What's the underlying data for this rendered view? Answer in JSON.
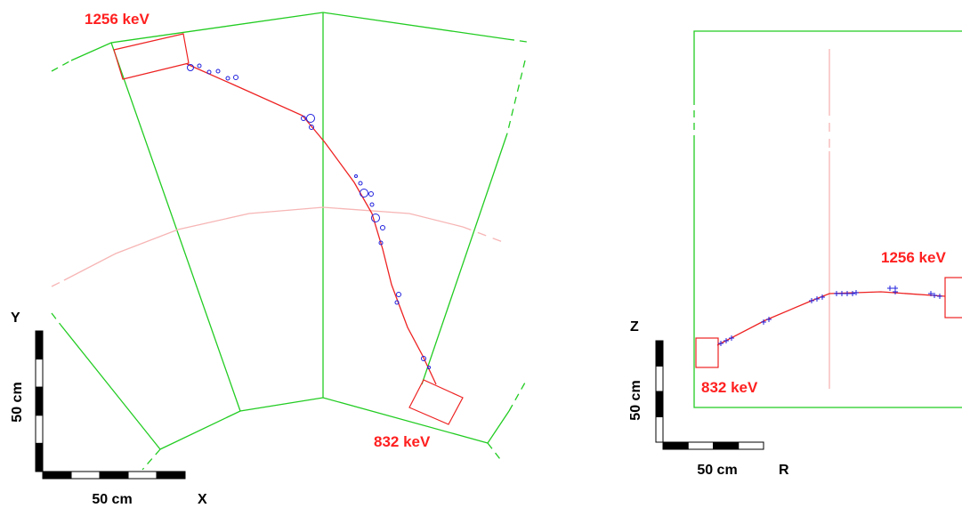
{
  "left_view": {
    "energy_labels": [
      "1256 keV",
      "832 keV"
    ],
    "scale": {
      "vertical_axis": "Y",
      "length_vertical": "50 cm",
      "length_horizontal": "50 cm",
      "horizontal_axis": "X"
    }
  },
  "right_view": {
    "energy_labels": [
      "1256 keV",
      "832 keV"
    ],
    "scale": {
      "vertical_axis": "Z",
      "length_vertical": "50 cm",
      "length_horizontal": "50 cm",
      "horizontal_axis": "R"
    }
  }
}
